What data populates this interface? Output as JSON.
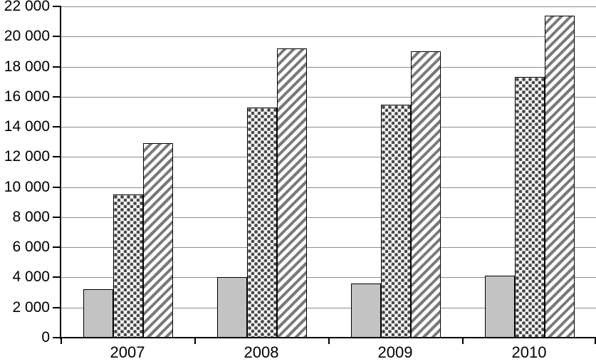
{
  "chart_data": {
    "type": "bar",
    "title": "",
    "xlabel": "",
    "ylabel": "",
    "categories": [
      "2007",
      "2008",
      "2009",
      "2010"
    ],
    "series": [
      {
        "name": "solid-gray",
        "pattern": "solid",
        "values": [
          3200,
          4000,
          3600,
          4100
        ]
      },
      {
        "name": "sphere-checker",
        "pattern": "spheres",
        "values": [
          9500,
          15300,
          15450,
          17300
        ]
      },
      {
        "name": "diagonal-stripes",
        "pattern": "diagonal-stripes",
        "values": [
          12900,
          19200,
          19000,
          21400
        ]
      }
    ],
    "ylim": [
      0,
      22000
    ],
    "ytick_step": 2000,
    "ytick_labels": [
      "0",
      "2 000",
      "4 000",
      "6 000",
      "8 000",
      "10 000",
      "12 000",
      "14 000",
      "16 000",
      "18 000",
      "20 000",
      "22 000"
    ],
    "grid": true,
    "legend": "none",
    "colors": {
      "background": "#ffffff",
      "axis": "#000000",
      "gridline": "#8c8c8c",
      "bar_border": "#000000",
      "bar_gray_fill": "#c3c3c3",
      "stripe_gray": "#7a7a7a",
      "sphere_dark": "#474747",
      "sphere_light": "#f6f6f6",
      "sphere_bg": "#dcdcdc"
    }
  }
}
